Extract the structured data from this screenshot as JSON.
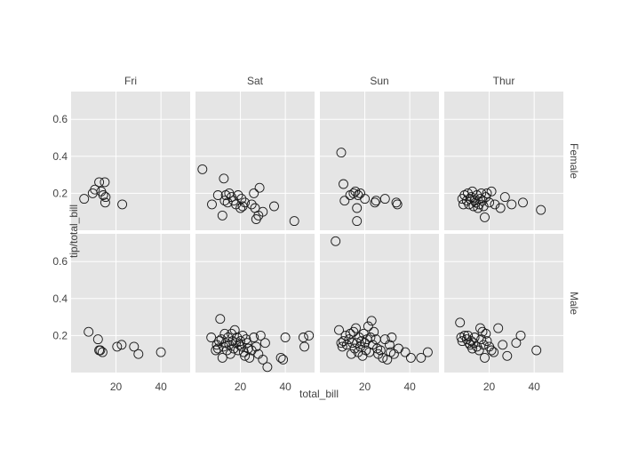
{
  "chart_data": {
    "type": "scatter",
    "title": "",
    "xlabel": "total_bill",
    "ylabel": "tip/total_bill",
    "xlim": [
      0,
      53
    ],
    "ylim": [
      0,
      0.75
    ],
    "xticks": [
      20,
      40
    ],
    "yticks": [
      0.2,
      0.4,
      0.6
    ],
    "grid": true,
    "marker": "open-circle",
    "columns": [
      "Fri",
      "Sat",
      "Sun",
      "Thur"
    ],
    "rows": [
      "Female",
      "Male"
    ],
    "panels": [
      {
        "row": "Female",
        "column": "Fri",
        "points": [
          [
            5.8,
            0.17
          ],
          [
            9.6,
            0.2
          ],
          [
            10.6,
            0.22
          ],
          [
            12.5,
            0.26
          ],
          [
            13.4,
            0.21
          ],
          [
            14.3,
            0.19
          ],
          [
            15.0,
            0.26
          ],
          [
            15.4,
            0.18
          ],
          [
            15.2,
            0.15
          ],
          [
            22.8,
            0.14
          ]
        ]
      },
      {
        "row": "Female",
        "column": "Sat",
        "points": [
          [
            3.1,
            0.33
          ],
          [
            7.3,
            0.14
          ],
          [
            10.0,
            0.19
          ],
          [
            12.0,
            0.08
          ],
          [
            12.6,
            0.28
          ],
          [
            13.0,
            0.16
          ],
          [
            13.5,
            0.19
          ],
          [
            14.3,
            0.15
          ],
          [
            15.0,
            0.2
          ],
          [
            16.0,
            0.18
          ],
          [
            17.0,
            0.16
          ],
          [
            18.0,
            0.14
          ],
          [
            19.0,
            0.19
          ],
          [
            20.0,
            0.12
          ],
          [
            20.5,
            0.17
          ],
          [
            21.0,
            0.13
          ],
          [
            22.0,
            0.15
          ],
          [
            25.0,
            0.14
          ],
          [
            26.0,
            0.2
          ],
          [
            26.5,
            0.12
          ],
          [
            27.0,
            0.06
          ],
          [
            28.0,
            0.08
          ],
          [
            28.5,
            0.23
          ],
          [
            30.0,
            0.1
          ],
          [
            35.0,
            0.13
          ],
          [
            44.0,
            0.05
          ]
        ]
      },
      {
        "row": "Female",
        "column": "Sun",
        "points": [
          [
            9.5,
            0.42
          ],
          [
            10.5,
            0.25
          ],
          [
            11.0,
            0.16
          ],
          [
            13.5,
            0.19
          ],
          [
            15.0,
            0.2
          ],
          [
            15.8,
            0.21
          ],
          [
            16.5,
            0.12
          ],
          [
            16.5,
            0.05
          ],
          [
            17.0,
            0.19
          ],
          [
            18.0,
            0.2
          ],
          [
            20.0,
            0.17
          ],
          [
            24.5,
            0.15
          ],
          [
            25.0,
            0.16
          ],
          [
            29.0,
            0.17
          ],
          [
            34.0,
            0.15
          ],
          [
            34.5,
            0.14
          ]
        ]
      },
      {
        "row": "Female",
        "column": "Thur",
        "points": [
          [
            8.0,
            0.17
          ],
          [
            8.5,
            0.14
          ],
          [
            9.0,
            0.19
          ],
          [
            10.0,
            0.16
          ],
          [
            10.5,
            0.2
          ],
          [
            11.0,
            0.14
          ],
          [
            11.5,
            0.17
          ],
          [
            12.0,
            0.18
          ],
          [
            12.5,
            0.21
          ],
          [
            13.0,
            0.13
          ],
          [
            13.5,
            0.16
          ],
          [
            14.0,
            0.15
          ],
          [
            14.5,
            0.19
          ],
          [
            15.0,
            0.12
          ],
          [
            15.5,
            0.14
          ],
          [
            16.0,
            0.17
          ],
          [
            16.5,
            0.2
          ],
          [
            17.0,
            0.16
          ],
          [
            17.5,
            0.13
          ],
          [
            18.0,
            0.07
          ],
          [
            18.5,
            0.18
          ],
          [
            19.0,
            0.2
          ],
          [
            20.0,
            0.15
          ],
          [
            21.0,
            0.21
          ],
          [
            22.5,
            0.14
          ],
          [
            25.0,
            0.12
          ],
          [
            27.0,
            0.18
          ],
          [
            30.0,
            0.14
          ],
          [
            35.0,
            0.15
          ],
          [
            43.0,
            0.11
          ]
        ]
      },
      {
        "row": "Male",
        "column": "Fri",
        "points": [
          [
            7.8,
            0.22
          ],
          [
            12.0,
            0.18
          ],
          [
            12.5,
            0.12
          ],
          [
            13.0,
            0.12
          ],
          [
            14.0,
            0.11
          ],
          [
            20.5,
            0.14
          ],
          [
            22.5,
            0.15
          ],
          [
            28.0,
            0.14
          ],
          [
            30.0,
            0.1
          ],
          [
            40.0,
            0.11
          ]
        ]
      },
      {
        "row": "Male",
        "column": "Sat",
        "points": [
          [
            7.0,
            0.19
          ],
          [
            9.0,
            0.12
          ],
          [
            9.5,
            0.15
          ],
          [
            10.0,
            0.13
          ],
          [
            10.5,
            0.17
          ],
          [
            11.0,
            0.29
          ],
          [
            11.5,
            0.18
          ],
          [
            12.0,
            0.08
          ],
          [
            12.5,
            0.14
          ],
          [
            13.0,
            0.21
          ],
          [
            13.5,
            0.16
          ],
          [
            14.0,
            0.12
          ],
          [
            14.5,
            0.19
          ],
          [
            15.0,
            0.15
          ],
          [
            15.5,
            0.1
          ],
          [
            16.0,
            0.21
          ],
          [
            16.5,
            0.17
          ],
          [
            17.0,
            0.13
          ],
          [
            17.5,
            0.23
          ],
          [
            18.0,
            0.16
          ],
          [
            18.5,
            0.19
          ],
          [
            19.0,
            0.12
          ],
          [
            19.5,
            0.15
          ],
          [
            20.0,
            0.17
          ],
          [
            20.5,
            0.14
          ],
          [
            21.0,
            0.2
          ],
          [
            21.5,
            0.11
          ],
          [
            22.0,
            0.09
          ],
          [
            22.5,
            0.18
          ],
          [
            23.0,
            0.16
          ],
          [
            23.5,
            0.13
          ],
          [
            24.0,
            0.08
          ],
          [
            25.0,
            0.12
          ],
          [
            26.0,
            0.19
          ],
          [
            27.0,
            0.14
          ],
          [
            28.0,
            0.1
          ],
          [
            29.0,
            0.2
          ],
          [
            30.0,
            0.07
          ],
          [
            31.0,
            0.16
          ],
          [
            32.0,
            0.03
          ],
          [
            38.0,
            0.08
          ],
          [
            39.0,
            0.07
          ],
          [
            40.0,
            0.19
          ],
          [
            48.0,
            0.19
          ],
          [
            48.5,
            0.14
          ],
          [
            50.5,
            0.2
          ]
        ]
      },
      {
        "row": "Male",
        "column": "Sun",
        "points": [
          [
            7.0,
            0.71
          ],
          [
            8.5,
            0.23
          ],
          [
            9.5,
            0.16
          ],
          [
            10.0,
            0.14
          ],
          [
            10.5,
            0.17
          ],
          [
            11.5,
            0.2
          ],
          [
            12.0,
            0.15
          ],
          [
            13.0,
            0.18
          ],
          [
            13.5,
            0.21
          ],
          [
            14.0,
            0.1
          ],
          [
            14.5,
            0.16
          ],
          [
            15.0,
            0.22
          ],
          [
            15.5,
            0.13
          ],
          [
            16.0,
            0.24
          ],
          [
            16.5,
            0.16
          ],
          [
            17.0,
            0.11
          ],
          [
            17.5,
            0.19
          ],
          [
            18.0,
            0.14
          ],
          [
            18.5,
            0.17
          ],
          [
            19.0,
            0.09
          ],
          [
            19.5,
            0.21
          ],
          [
            20.0,
            0.16
          ],
          [
            20.5,
            0.12
          ],
          [
            21.0,
            0.18
          ],
          [
            21.5,
            0.25
          ],
          [
            22.0,
            0.11
          ],
          [
            22.5,
            0.19
          ],
          [
            23.0,
            0.28
          ],
          [
            23.5,
            0.15
          ],
          [
            24.0,
            0.22
          ],
          [
            25.0,
            0.18
          ],
          [
            25.5,
            0.13
          ],
          [
            26.0,
            0.1
          ],
          [
            27.0,
            0.12
          ],
          [
            28.0,
            0.08
          ],
          [
            29.0,
            0.18
          ],
          [
            30.0,
            0.07
          ],
          [
            31.0,
            0.15
          ],
          [
            31.5,
            0.11
          ],
          [
            32.0,
            0.19
          ],
          [
            33.0,
            0.1
          ],
          [
            35.0,
            0.13
          ],
          [
            38.0,
            0.11
          ],
          [
            40.5,
            0.08
          ],
          [
            45.0,
            0.08
          ],
          [
            48.0,
            0.11
          ]
        ]
      },
      {
        "row": "Male",
        "column": "Thur",
        "points": [
          [
            7.0,
            0.27
          ],
          [
            7.5,
            0.19
          ],
          [
            8.0,
            0.17
          ],
          [
            9.0,
            0.2
          ],
          [
            10.0,
            0.18
          ],
          [
            10.5,
            0.2
          ],
          [
            11.0,
            0.16
          ],
          [
            11.5,
            0.15
          ],
          [
            12.0,
            0.17
          ],
          [
            12.5,
            0.13
          ],
          [
            13.0,
            0.16
          ],
          [
            13.5,
            0.19
          ],
          [
            14.5,
            0.14
          ],
          [
            15.5,
            0.12
          ],
          [
            16.0,
            0.24
          ],
          [
            16.5,
            0.18
          ],
          [
            17.0,
            0.22
          ],
          [
            17.5,
            0.15
          ],
          [
            18.0,
            0.08
          ],
          [
            18.5,
            0.21
          ],
          [
            19.0,
            0.17
          ],
          [
            20.0,
            0.14
          ],
          [
            21.0,
            0.12
          ],
          [
            22.0,
            0.11
          ],
          [
            24.0,
            0.24
          ],
          [
            26.0,
            0.15
          ],
          [
            28.0,
            0.09
          ],
          [
            32.0,
            0.16
          ],
          [
            34.0,
            0.2
          ],
          [
            41.0,
            0.12
          ]
        ]
      }
    ]
  },
  "colors": {
    "panel_bg": "#e5e5e5",
    "grid": "#ffffff",
    "marker_stroke": "#1a1a1a",
    "text": "#444444"
  }
}
